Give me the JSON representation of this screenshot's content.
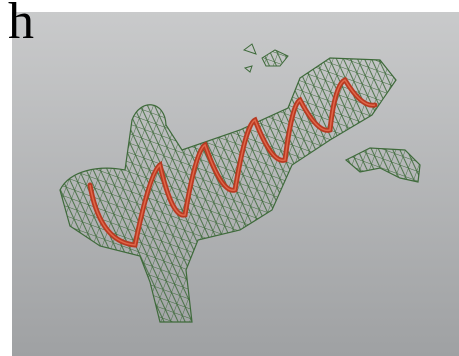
{
  "panel_label": "h"
}
